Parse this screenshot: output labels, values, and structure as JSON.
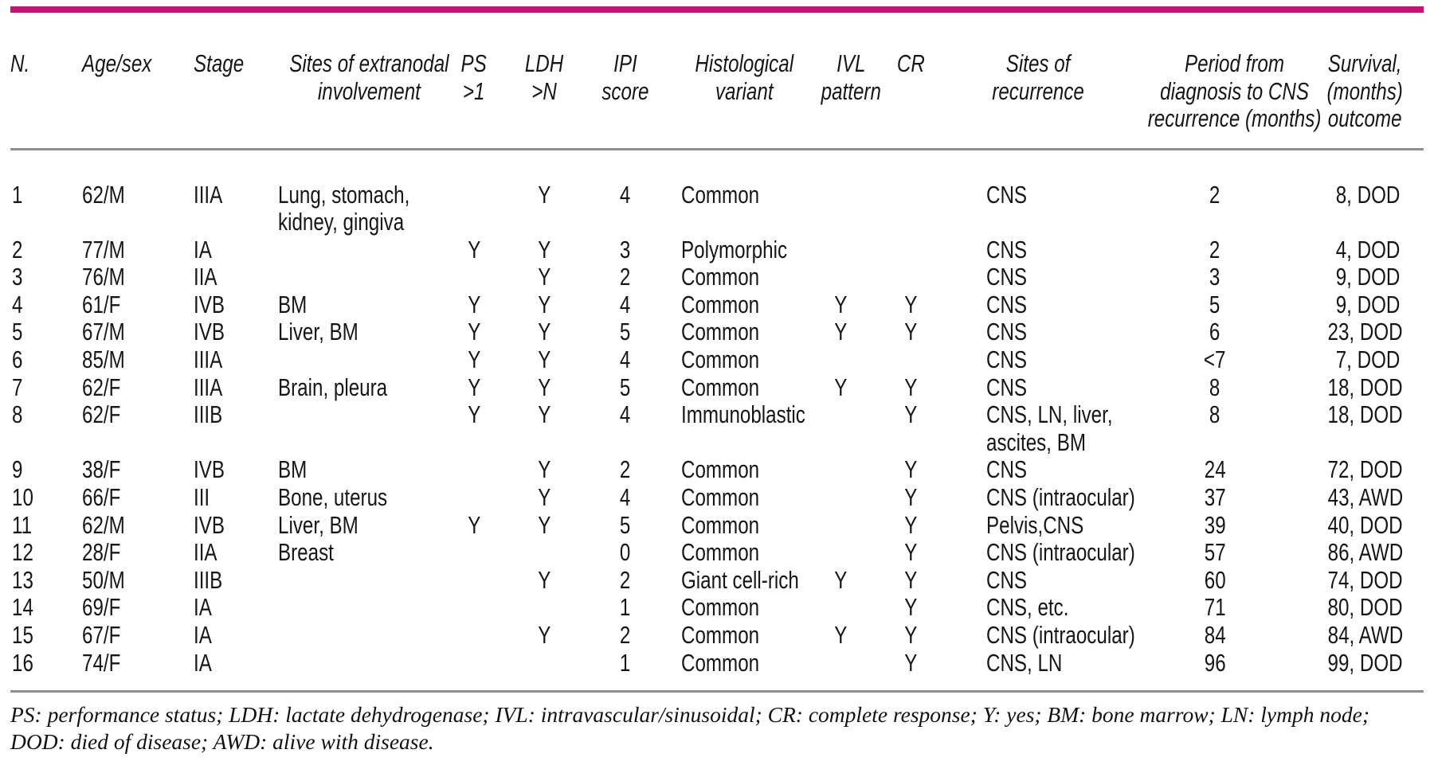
{
  "accent_color": "#cc1073",
  "rule_color": "#8e8e8e",
  "table": {
    "columns": [
      {
        "label": "N."
      },
      {
        "label": "Age/sex"
      },
      {
        "label": "Stage"
      },
      {
        "label": "Sites of extranodal\ninvolvement"
      },
      {
        "label": "PS\n>1"
      },
      {
        "label": "LDH\n>N"
      },
      {
        "label": "IPI\nscore"
      },
      {
        "label": "Histological\nvariant"
      },
      {
        "label": "IVL\npattern"
      },
      {
        "label": "CR"
      },
      {
        "label": "Sites of\nrecurrence"
      },
      {
        "label": "Period from\ndiagnosis to CNS\nrecurrence (months)"
      },
      {
        "label": "Survival,\n(months)\noutcome"
      }
    ],
    "rows": [
      {
        "cells": [
          "1",
          "62/M",
          "IIIA",
          "Lung, stomach,\nkidney, gingiva",
          "",
          "Y",
          "4",
          "Common",
          "",
          "",
          "CNS",
          "2",
          "8, DOD"
        ]
      },
      {
        "cells": [
          "2",
          "77/M",
          "IA",
          "",
          "Y",
          "Y",
          "3",
          "Polymorphic",
          "",
          "",
          "CNS",
          "2",
          "4, DOD"
        ]
      },
      {
        "cells": [
          "3",
          "76/M",
          "IIA",
          "",
          "",
          "Y",
          "2",
          "Common",
          "",
          "",
          "CNS",
          "3",
          "9, DOD"
        ]
      },
      {
        "cells": [
          "4",
          "61/F",
          "IVB",
          "BM",
          "Y",
          "Y",
          "4",
          "Common",
          "Y",
          "Y",
          "CNS",
          "5",
          "9, DOD"
        ]
      },
      {
        "cells": [
          "5",
          "67/M",
          "IVB",
          "Liver, BM",
          "Y",
          "Y",
          "5",
          "Common",
          "Y",
          "Y",
          "CNS",
          "6",
          "23, DOD"
        ]
      },
      {
        "cells": [
          "6",
          "85/M",
          "IIIA",
          "",
          "Y",
          "Y",
          "4",
          "Common",
          "",
          "",
          "CNS",
          "<7",
          "7, DOD"
        ]
      },
      {
        "cells": [
          "7",
          "62/F",
          "IIIA",
          "Brain, pleura",
          "Y",
          "Y",
          "5",
          "Common",
          "Y",
          "Y",
          "CNS",
          "8",
          "18, DOD"
        ]
      },
      {
        "cells": [
          "8",
          "62/F",
          "IIIB",
          "",
          "Y",
          "Y",
          "4",
          "Immunoblastic",
          "",
          "Y",
          "CNS, LN, liver,\nascites, BM",
          "8",
          "18, DOD"
        ]
      },
      {
        "cells": [
          "9",
          "38/F",
          "IVB",
          "BM",
          "",
          "Y",
          "2",
          "Common",
          "",
          "Y",
          "CNS",
          "24",
          "72, DOD"
        ]
      },
      {
        "cells": [
          "10",
          "66/F",
          "III",
          "Bone, uterus",
          "",
          "Y",
          "4",
          "Common",
          "",
          "Y",
          "CNS (intraocular)",
          "37",
          "43, AWD"
        ]
      },
      {
        "cells": [
          "11",
          "62/M",
          "IVB",
          "Liver, BM",
          "Y",
          "Y",
          "5",
          "Common",
          "",
          "Y",
          "Pelvis,CNS",
          "39",
          "40, DOD"
        ]
      },
      {
        "cells": [
          "12",
          "28/F",
          "IIA",
          "Breast",
          "",
          "",
          "0",
          "Common",
          "",
          "Y",
          "CNS (intraocular)",
          "57",
          "86, AWD"
        ]
      },
      {
        "cells": [
          "13",
          "50/M",
          "IIIB",
          "",
          "",
          "Y",
          "2",
          "Giant cell-rich",
          "Y",
          "Y",
          "CNS",
          "60",
          "74, DOD"
        ]
      },
      {
        "cells": [
          "14",
          "69/F",
          "IA",
          "",
          "",
          "",
          "1",
          "Common",
          "",
          "Y",
          "CNS, etc.",
          "71",
          "80, DOD"
        ]
      },
      {
        "cells": [
          "15",
          "67/F",
          "IA",
          "",
          "",
          "Y",
          "2",
          "Common",
          "Y",
          "Y",
          "CNS (intraocular)",
          "84",
          "84, AWD"
        ]
      },
      {
        "cells": [
          "16",
          "74/F",
          "IA",
          "",
          "",
          "",
          "1",
          "Common",
          "",
          "Y",
          "CNS, LN",
          "96",
          "99, DOD"
        ]
      }
    ]
  },
  "footnote": "PS: performance status; LDH: lactate dehydrogenase; IVL: intravascular/sinusoidal; CR: complete response; Y: yes; BM: bone marrow; LN: lymph node; DOD: died of disease; AWD: alive with disease."
}
